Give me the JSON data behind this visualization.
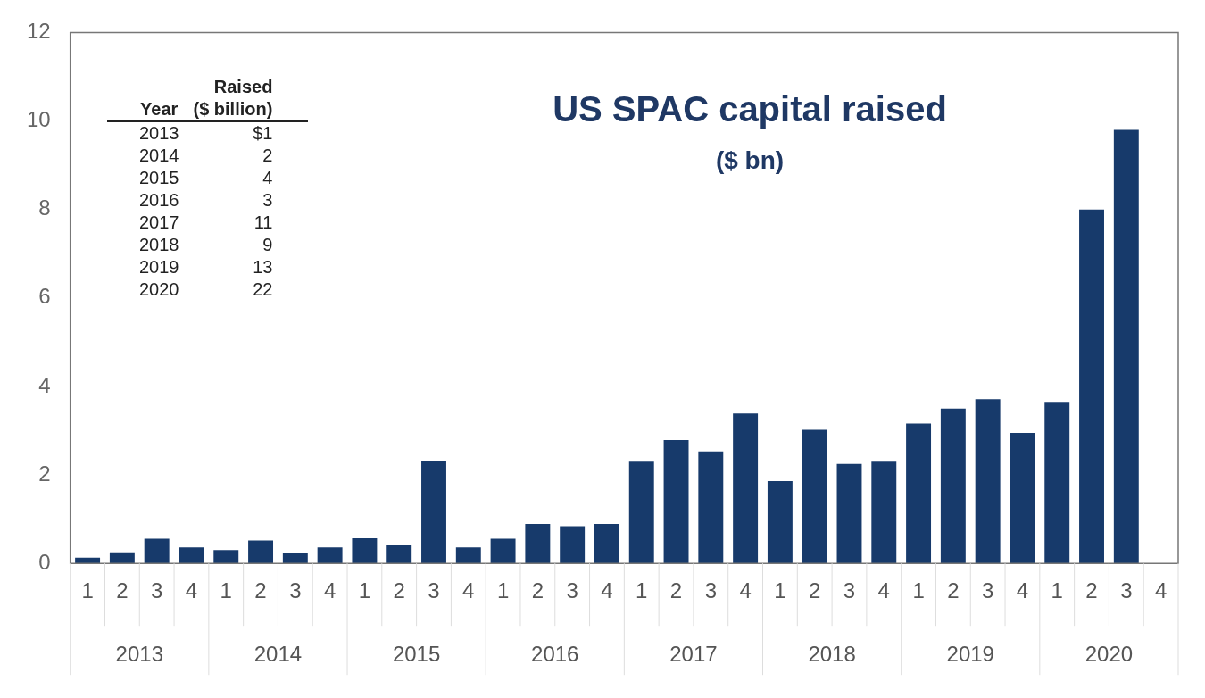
{
  "chart_data": {
    "type": "bar",
    "title": "US SPAC capital raised",
    "subtitle": "($ bn)",
    "categories": [
      "1",
      "2",
      "3",
      "4",
      "1",
      "2",
      "3",
      "4",
      "1",
      "2",
      "3",
      "4",
      "1",
      "2",
      "3",
      "4",
      "1",
      "2",
      "3",
      "4",
      "1",
      "2",
      "3",
      "4",
      "1",
      "2",
      "3",
      "4",
      "1",
      "2",
      "3",
      "4"
    ],
    "values": [
      0.13,
      0.25,
      0.56,
      0.36,
      0.3,
      0.52,
      0.24,
      0.36,
      0.57,
      0.41,
      2.31,
      0.36,
      0.56,
      0.89,
      0.84,
      0.89,
      2.3,
      2.79,
      2.53,
      3.39,
      1.86,
      3.02,
      2.25,
      2.3,
      3.16,
      3.5,
      3.71,
      2.95,
      3.65,
      8.0,
      9.8,
      null
    ],
    "color": "#173a6b",
    "ylim": [
      0,
      12
    ],
    "yticks": [
      0,
      2,
      4,
      6,
      8,
      10,
      12
    ],
    "grid": false,
    "legend": false,
    "annotations": [
      "Year",
      "Raised\n($ billion)",
      "2013",
      "$1",
      "2014",
      "2",
      "2015",
      "4",
      "2016",
      "3",
      "2017",
      "11",
      "2018",
      "9",
      "2019",
      "13",
      "2020",
      "22",
      "2013",
      "2014",
      "2015",
      "2016",
      "2017",
      "2018",
      "2019",
      "2020"
    ]
  }
}
